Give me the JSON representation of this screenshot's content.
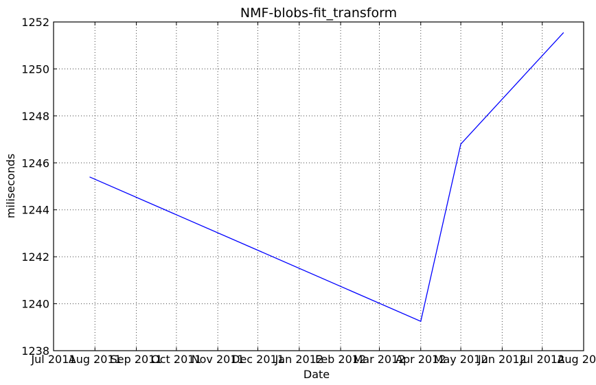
{
  "chart_data": {
    "type": "line",
    "title": "NMF-blobs-fit_transform",
    "xlabel": "Date",
    "ylabel": "miliseconds",
    "x_ticks": [
      {
        "date": "2011-07-01",
        "label": "Jul 2011"
      },
      {
        "date": "2011-08-01",
        "label": "Aug 2011"
      },
      {
        "date": "2011-09-01",
        "label": "Sep 2011"
      },
      {
        "date": "2011-10-01",
        "label": "Oct 2011"
      },
      {
        "date": "2011-11-01",
        "label": "Nov 2011"
      },
      {
        "date": "2011-12-01",
        "label": "Dec 2011"
      },
      {
        "date": "2012-01-01",
        "label": "Jan 2012"
      },
      {
        "date": "2012-02-01",
        "label": "Feb 2012"
      },
      {
        "date": "2012-03-01",
        "label": "Mar 2012"
      },
      {
        "date": "2012-04-01",
        "label": "Apr 2012"
      },
      {
        "date": "2012-05-01",
        "label": "May 2012"
      },
      {
        "date": "2012-06-01",
        "label": "Jun 2012"
      },
      {
        "date": "2012-07-01",
        "label": "Jul 2012"
      },
      {
        "date": "2012-08-01",
        "label": "Aug 2012"
      }
    ],
    "y_ticks": [
      1238,
      1240,
      1242,
      1244,
      1246,
      1248,
      1250,
      1252
    ],
    "xlim": [
      "2011-07-01",
      "2012-08-01"
    ],
    "ylim": [
      1238,
      1252
    ],
    "grid": true,
    "series": [
      {
        "color": "#0000ff",
        "points": [
          {
            "x": "2011-07-28",
            "y": 1245.4
          },
          {
            "x": "2012-04-01",
            "y": 1239.25
          },
          {
            "x": "2012-05-01",
            "y": 1246.8
          },
          {
            "x": "2012-07-17",
            "y": 1251.55
          }
        ]
      }
    ]
  }
}
